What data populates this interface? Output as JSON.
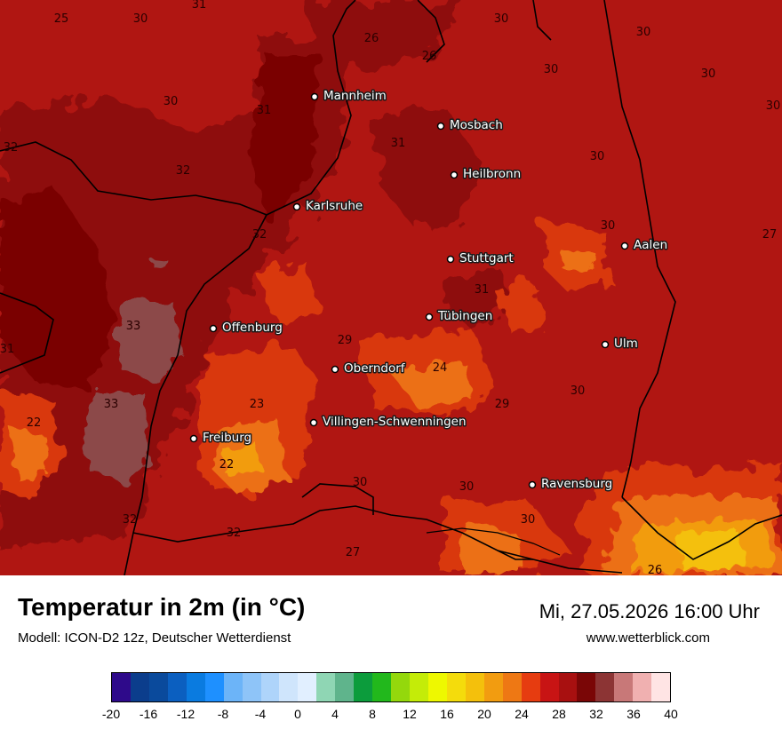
{
  "map": {
    "cities": [
      {
        "name": "Mannheim"
      },
      {
        "name": "Mosbach"
      },
      {
        "name": "Heilbronn"
      },
      {
        "name": "Karlsruhe"
      },
      {
        "name": "Stuttgart"
      },
      {
        "name": "Aalen"
      },
      {
        "name": "Tübingen"
      },
      {
        "name": "Offenburg"
      },
      {
        "name": "Ulm"
      },
      {
        "name": "Oberndorf"
      },
      {
        "name": "Villingen-Schwenningen"
      },
      {
        "name": "Freiburg"
      },
      {
        "name": "Ravensburg"
      }
    ],
    "isotherm_labels": [
      "25",
      "30",
      "31",
      "26",
      "26",
      "30",
      "30",
      "30",
      "30",
      "30",
      "31",
      "31",
      "32",
      "32",
      "30",
      "30",
      "27",
      "32",
      "30",
      "31",
      "33",
      "29",
      "24",
      "31",
      "33",
      "23",
      "29",
      "30",
      "22",
      "22",
      "30",
      "30",
      "30",
      "27",
      "32",
      "32",
      "26"
    ]
  },
  "footer": {
    "title": "Temperatur in 2m (in °C)",
    "model": "Modell: ICON-D2 12z, Deutscher Wetterdienst",
    "datetime": "Mi, 27.05.2026 16:00 Uhr",
    "website": "www.wetterblick.com"
  },
  "legend": {
    "colors": [
      "#2e0a8a",
      "#0b3d8c",
      "#0a4a9c",
      "#0b5fc0",
      "#0a7be0",
      "#1e90ff",
      "#6cb4f8",
      "#8ec4f8",
      "#aed4fa",
      "#cfe5fc",
      "#e1efff",
      "#8fd6b4",
      "#5fb48c",
      "#0c9c3c",
      "#22b81c",
      "#94d80c",
      "#c4ec08",
      "#eef800",
      "#f4dc0c",
      "#f4c00c",
      "#f29c10",
      "#ee7814",
      "#e63c10",
      "#c81414",
      "#a81010",
      "#7a0606",
      "#8c3434",
      "#c87878",
      "#f0b0b0",
      "#ffe4e4"
    ],
    "ticks": [
      "-20",
      "-16",
      "-12",
      "-8",
      "-4",
      "0",
      "4",
      "8",
      "12",
      "16",
      "20",
      "24",
      "28",
      "32",
      "36",
      "40"
    ]
  }
}
